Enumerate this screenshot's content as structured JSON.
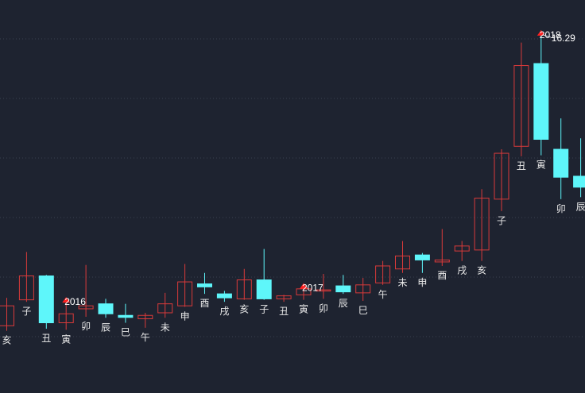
{
  "colors": {
    "background": "#1e2330",
    "up": "#d93a3a",
    "down": "#5ef6fa",
    "grid": "#3a4050",
    "text": "#e8e8e8",
    "marker": "#ff2020"
  },
  "chart_data": {
    "type": "candlestick",
    "grid": true,
    "ylim": [
      0,
      17.4
    ],
    "candles": [
      {
        "label": "亥",
        "open": 1.7,
        "close": 2.7,
        "high": 3.1,
        "low": 1.45
      },
      {
        "label": "子",
        "open": 3.0,
        "close": 4.2,
        "high": 5.4,
        "low": 2.9
      },
      {
        "label": "丑",
        "open": 4.2,
        "close": 1.85,
        "high": 4.25,
        "low": 1.55
      },
      {
        "label": "寅",
        "open": 1.85,
        "close": 2.3,
        "high": 2.9,
        "low": 1.5
      },
      {
        "label": "卯",
        "open": 2.55,
        "close": 2.7,
        "high": 4.75,
        "low": 2.15
      },
      {
        "label": "辰",
        "open": 2.8,
        "close": 2.3,
        "high": 3.05,
        "low": 2.1
      },
      {
        "label": "巳",
        "open": 2.22,
        "close": 2.12,
        "high": 2.8,
        "low": 1.85
      },
      {
        "label": "午",
        "open": 2.05,
        "close": 2.22,
        "high": 2.35,
        "low": 1.6
      },
      {
        "label": "未",
        "open": 2.35,
        "close": 2.8,
        "high": 3.35,
        "low": 2.1
      },
      {
        "label": "申",
        "open": 2.7,
        "close": 3.9,
        "high": 4.8,
        "low": 2.65
      },
      {
        "label": "酉",
        "open": 3.8,
        "close": 3.65,
        "high": 4.35,
        "low": 3.3
      },
      {
        "label": "戌",
        "open": 3.3,
        "close": 3.1,
        "high": 3.45,
        "low": 2.9
      },
      {
        "label": "亥",
        "open": 3.05,
        "close": 4.0,
        "high": 4.55,
        "low": 3.0
      },
      {
        "label": "子",
        "open": 4.0,
        "close": 3.05,
        "high": 5.55,
        "low": 3.0
      },
      {
        "label": "丑",
        "open": 3.05,
        "close": 3.2,
        "high": 3.25,
        "low": 2.9
      },
      {
        "label": "寅",
        "open": 3.25,
        "close": 3.55,
        "high": 3.6,
        "low": 3.0
      },
      {
        "label": "卯",
        "open": 3.5,
        "close": 3.5,
        "high": 4.3,
        "low": 3.05
      },
      {
        "label": "辰",
        "open": 3.7,
        "close": 3.4,
        "high": 4.25,
        "low": 3.3
      },
      {
        "label": "巳",
        "open": 3.35,
        "close": 3.75,
        "high": 4.1,
        "low": 2.95
      },
      {
        "label": "午",
        "open": 3.85,
        "close": 4.7,
        "high": 4.95,
        "low": 3.75
      },
      {
        "label": "未",
        "open": 4.55,
        "close": 5.2,
        "high": 5.95,
        "low": 4.35
      },
      {
        "label": "申",
        "open": 5.25,
        "close": 5.0,
        "high": 5.35,
        "low": 4.35
      },
      {
        "label": "酉",
        "open": 4.9,
        "close": 5.0,
        "high": 6.55,
        "low": 4.7
      },
      {
        "label": "戌",
        "open": 5.45,
        "close": 5.7,
        "high": 5.95,
        "low": 4.95
      },
      {
        "label": "亥",
        "open": 5.5,
        "close": 8.1,
        "high": 8.55,
        "low": 4.95
      },
      {
        "label": "子",
        "open": 8.05,
        "close": 10.35,
        "high": 10.55,
        "low": 7.45
      },
      {
        "label": "丑",
        "open": 10.7,
        "close": 14.75,
        "high": 15.9,
        "low": 10.2
      },
      {
        "label": "寅",
        "open": 14.85,
        "close": 11.05,
        "high": 16.29,
        "low": 10.25
      },
      {
        "label": "卯",
        "open": 10.55,
        "close": 9.15,
        "high": 12.1,
        "low": 8.05
      },
      {
        "label": "辰",
        "open": 9.2,
        "close": 8.65,
        "high": 11.1,
        "low": 8.15
      }
    ],
    "year_markers": [
      {
        "index": 3,
        "label": "2016"
      },
      {
        "index": 15,
        "label": "2017"
      },
      {
        "index": 27,
        "label": "2018"
      }
    ],
    "annotations": [
      {
        "index": 27,
        "value": 16.29,
        "text": "16.29"
      }
    ]
  }
}
